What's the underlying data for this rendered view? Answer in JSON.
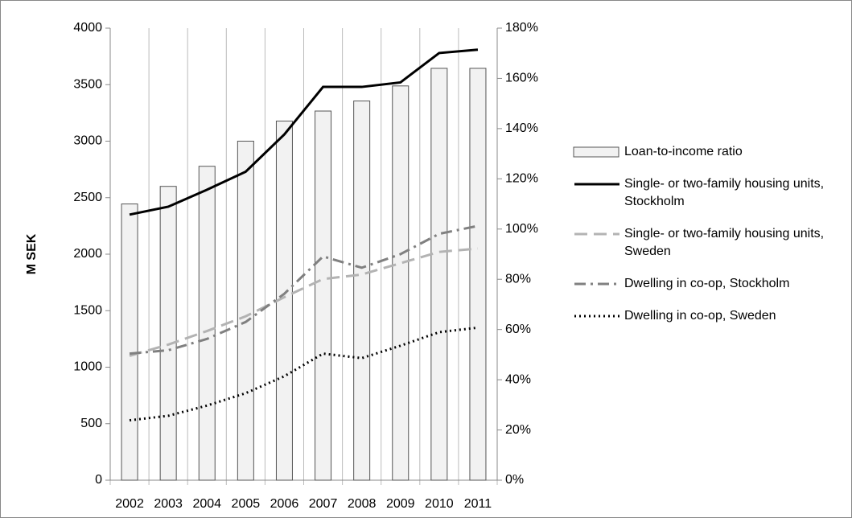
{
  "chart_data": {
    "type": "combo",
    "y_label": "M SEK",
    "categories": [
      "2002",
      "2003",
      "2004",
      "2005",
      "2006",
      "2007",
      "2008",
      "2009",
      "2010",
      "2011"
    ],
    "ylim": [
      0,
      4000
    ],
    "yticks": [
      0,
      500,
      1000,
      1500,
      2000,
      2500,
      3000,
      3500,
      4000
    ],
    "y2lim": [
      0,
      180
    ],
    "y2ticks": [
      {
        "value": 0,
        "label": "0%"
      },
      {
        "value": 20,
        "label": "20%"
      },
      {
        "value": 40,
        "label": "40%"
      },
      {
        "value": 60,
        "label": "60%"
      },
      {
        "value": 80,
        "label": "80%"
      },
      {
        "value": 100,
        "label": "100%"
      },
      {
        "value": 120,
        "label": "120%"
      },
      {
        "value": 140,
        "label": "140%"
      },
      {
        "value": 160,
        "label": "160%"
      },
      {
        "value": 180,
        "label": "180%"
      }
    ],
    "series": [
      {
        "name": "Loan-to-income ratio",
        "type": "bar",
        "axis": "y2",
        "color": "#f2f2f2",
        "values": [
          110,
          117,
          125,
          135,
          143,
          147,
          151,
          157,
          164,
          164
        ]
      },
      {
        "name": "Single- or two-family housing units, Stockholm",
        "type": "line",
        "style": "solid",
        "color": "#000000",
        "values": [
          2350,
          2420,
          2570,
          2730,
          3060,
          3480,
          3480,
          3520,
          3780,
          3810
        ]
      },
      {
        "name": "Single- or two-family housing units, Sweden",
        "type": "line",
        "style": "dashed",
        "color": "#b3b3b3",
        "values": [
          1100,
          1200,
          1320,
          1450,
          1620,
          1780,
          1820,
          1920,
          2020,
          2050
        ]
      },
      {
        "name": "Dwelling in co-op, Stockholm",
        "type": "line",
        "style": "dashdot",
        "color": "#808080",
        "values": [
          1120,
          1150,
          1250,
          1400,
          1650,
          1980,
          1880,
          2000,
          2180,
          2250
        ]
      },
      {
        "name": "Dwelling in co-op, Sweden",
        "type": "line",
        "style": "dotted",
        "color": "#000000",
        "values": [
          530,
          570,
          660,
          770,
          920,
          1120,
          1080,
          1190,
          1310,
          1350
        ]
      }
    ]
  }
}
